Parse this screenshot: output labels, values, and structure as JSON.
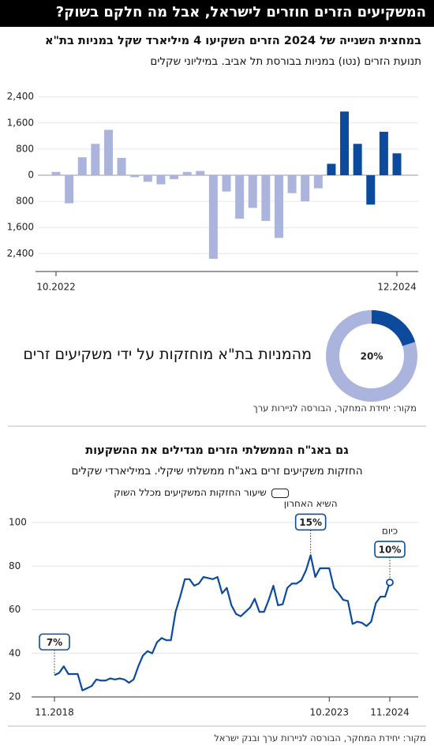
{
  "title": "המשקיעים הזרים חוזרים לישראל, אבל מה חלקם בשוק?",
  "chart_data": [
    {
      "type": "bar",
      "title": "במחצית השנייה של 2024 הזרים השקיעו 4 מיליארד שקל במניות בת\"א",
      "subtitle": "תנועת הזרים (נטו) במניות בבורסת תל אביב. במיליוני שקלים",
      "categories": [
        "10.2022",
        null,
        null,
        null,
        null,
        null,
        null,
        null,
        null,
        null,
        null,
        null,
        null,
        null,
        null,
        null,
        null,
        null,
        null,
        null,
        null,
        null,
        null,
        null,
        null,
        null,
        "12.2024"
      ],
      "values": [
        100,
        -860,
        550,
        960,
        1390,
        530,
        -60,
        -200,
        -280,
        -120,
        100,
        130,
        -2560,
        -500,
        -1330,
        -1000,
        -1400,
        -1920,
        -550,
        -800,
        -400,
        350,
        1950,
        960,
        -900,
        1330,
        670
      ],
      "colors": [
        "#aab4dc",
        "#aab4dc",
        "#aab4dc",
        "#aab4dc",
        "#aab4dc",
        "#aab4dc",
        "#aab4dc",
        "#aab4dc",
        "#aab4dc",
        "#aab4dc",
        "#aab4dc",
        "#aab4dc",
        "#aab4dc",
        "#aab4dc",
        "#aab4dc",
        "#aab4dc",
        "#aab4dc",
        "#aab4dc",
        "#aab4dc",
        "#aab4dc",
        "#aab4dc",
        "#0b4a9c",
        "#0b4a9c",
        "#0b4a9c",
        "#0b4a9c",
        "#0b4a9c",
        "#0b4a9c"
      ],
      "ylim": [
        -2900,
        2900
      ],
      "yticks": [
        {
          "value": 2400,
          "label": "2,400"
        },
        {
          "value": 1600,
          "label": "1,600"
        },
        800,
        0,
        {
          "value": -800,
          "label": "800"
        },
        {
          "value": -1600,
          "label": "1,600"
        },
        {
          "value": -2400,
          "label": "2,400"
        }
      ],
      "grid": true
    },
    {
      "type": "pie",
      "values": [
        20
      ],
      "value_labels": [
        "20%"
      ],
      "color": "#0b4a9c",
      "track_color": "#aab4dc",
      "text": "מהמניות בת\"א מוחזקות על ידי משקיעים זרים",
      "source": "מקור: יחידת המחקר, הבורסה לניירות ערך"
    },
    {
      "type": "line",
      "title": "גם באג\"ח הממשלתי הזרים מגדילים את ההשקעות",
      "subtitle": "החזקות משקיעים זרים באג\"ח ממשלתי שיקלי. במיליארדי שקלים",
      "legend_label": "שיעור החזקות המשקיעים מכלל השוק",
      "categories": [
        "11.2018",
        null,
        null,
        null,
        null,
        null,
        null,
        null,
        null,
        null,
        null,
        null,
        null,
        null,
        null,
        null,
        null,
        null,
        null,
        null,
        null,
        null,
        null,
        null,
        null,
        null,
        null,
        null,
        null,
        null,
        null,
        null,
        null,
        null,
        null,
        null,
        null,
        null,
        null,
        null,
        null,
        null,
        null,
        null,
        null,
        null,
        null,
        null,
        null,
        null,
        null,
        null,
        null,
        null,
        null,
        null,
        null,
        null,
        null,
        "10.2023",
        null,
        null,
        null,
        null,
        null,
        null,
        null,
        null,
        null,
        null,
        null,
        null,
        "11.2024"
      ],
      "series": [
        {
          "color": "#0b4a9c",
          "values": [
            30,
            31,
            34,
            30.5,
            30.5,
            30.5,
            23,
            24,
            25,
            28,
            27.5,
            27.5,
            28.5,
            28,
            28.5,
            28,
            26.5,
            28,
            34,
            39,
            41,
            40,
            45,
            47,
            46,
            46,
            59,
            66,
            74,
            74,
            71,
            72,
            75,
            74.5,
            74,
            75,
            67.5,
            70,
            62,
            58,
            57,
            59,
            61,
            65,
            59,
            59,
            64.5,
            71,
            62,
            62.5,
            70,
            72,
            72,
            73.5,
            78,
            85,
            75,
            79,
            79,
            79,
            70,
            67.5,
            64.5,
            64,
            53.5,
            54.5,
            54,
            52.5,
            54.5,
            63,
            66,
            66,
            72.5
          ]
        }
      ],
      "annotations": [
        {
          "index": 0,
          "label": "7%"
        },
        {
          "index": 55,
          "label": "15%",
          "text": "השיא האחרון"
        },
        {
          "index": 72,
          "label": "10%",
          "text": "כיום"
        }
      ],
      "ylim": [
        20,
        100
      ],
      "yticks": [
        20,
        40,
        60,
        80,
        100
      ],
      "grid": true,
      "source": "מקור: יחידת המחקר, הבורסה לניירות ערך ובנק ישראל"
    }
  ]
}
